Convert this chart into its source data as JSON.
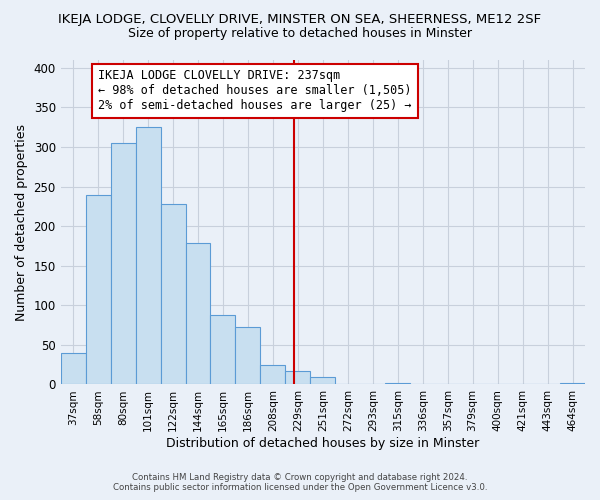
{
  "title": "IKEJA LODGE, CLOVELLY DRIVE, MINSTER ON SEA, SHEERNESS, ME12 2SF",
  "subtitle": "Size of property relative to detached houses in Minster",
  "xlabel": "Distribution of detached houses by size in Minster",
  "ylabel": "Number of detached properties",
  "bar_labels": [
    "37sqm",
    "58sqm",
    "80sqm",
    "101sqm",
    "122sqm",
    "144sqm",
    "165sqm",
    "186sqm",
    "208sqm",
    "229sqm",
    "251sqm",
    "272sqm",
    "293sqm",
    "315sqm",
    "336sqm",
    "357sqm",
    "379sqm",
    "400sqm",
    "421sqm",
    "443sqm",
    "464sqm"
  ],
  "bar_heights": [
    40,
    240,
    305,
    325,
    228,
    179,
    88,
    73,
    25,
    17,
    10,
    0,
    0,
    2,
    0,
    0,
    0,
    0,
    0,
    0,
    2
  ],
  "bar_color": "#c8dff0",
  "bar_edge_color": "#5b9bd5",
  "vline_color": "#cc0000",
  "annotation_line1": "IKEJA LODGE CLOVELLY DRIVE: 237sqm",
  "annotation_line2": "← 98% of detached houses are smaller (1,505)",
  "annotation_line3": "2% of semi-detached houses are larger (25) →",
  "annotation_box_color": "white",
  "annotation_box_edge": "#cc0000",
  "ylim": [
    0,
    410
  ],
  "yticks": [
    0,
    50,
    100,
    150,
    200,
    250,
    300,
    350,
    400
  ],
  "footer1": "Contains HM Land Registry data © Crown copyright and database right 2024.",
  "footer2": "Contains public sector information licensed under the Open Government Licence v3.0.",
  "bg_color": "#eaf0f8",
  "plot_bg_color": "#eaf0f8",
  "grid_color": "#c8d0dc"
}
